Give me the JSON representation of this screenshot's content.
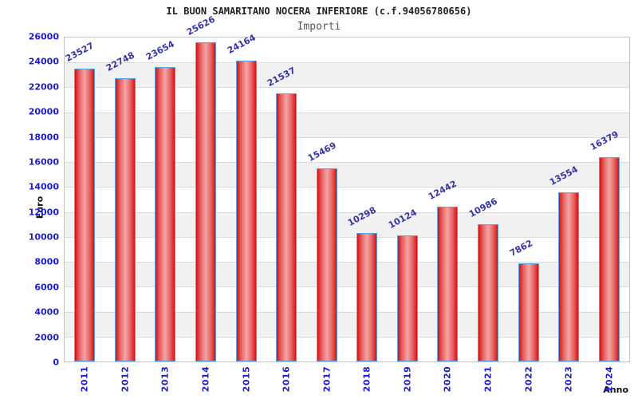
{
  "chart_data": {
    "type": "bar",
    "title": "IL BUON SAMARITANO NOCERA INFERIORE (c.f.94056780656)",
    "subtitle": "Importi",
    "xlabel": "Anno",
    "ylabel": "Euro",
    "categories": [
      "2011",
      "2012",
      "2013",
      "2014",
      "2015",
      "2016",
      "2017",
      "2018",
      "2019",
      "2020",
      "2021",
      "2022",
      "2023",
      "2024"
    ],
    "values": [
      23527,
      22748,
      23654,
      25626,
      24164,
      21537,
      15469,
      10298,
      10124,
      12442,
      10986,
      7862,
      13554,
      16379
    ],
    "ylim": [
      0,
      26000
    ],
    "ytick_step": 2000,
    "grid": true,
    "legend": false,
    "colors": {
      "bar_edge": "#58a2e8",
      "bar_dark": "#d31212",
      "bar_light": "#f3a6a6",
      "axis_tick_label": "#1c1ccd",
      "value_label": "#3535a8",
      "band_gray": "#f1f1f1",
      "gridline": "#dadada",
      "title": "#222222",
      "subtitle": "#555555"
    }
  }
}
